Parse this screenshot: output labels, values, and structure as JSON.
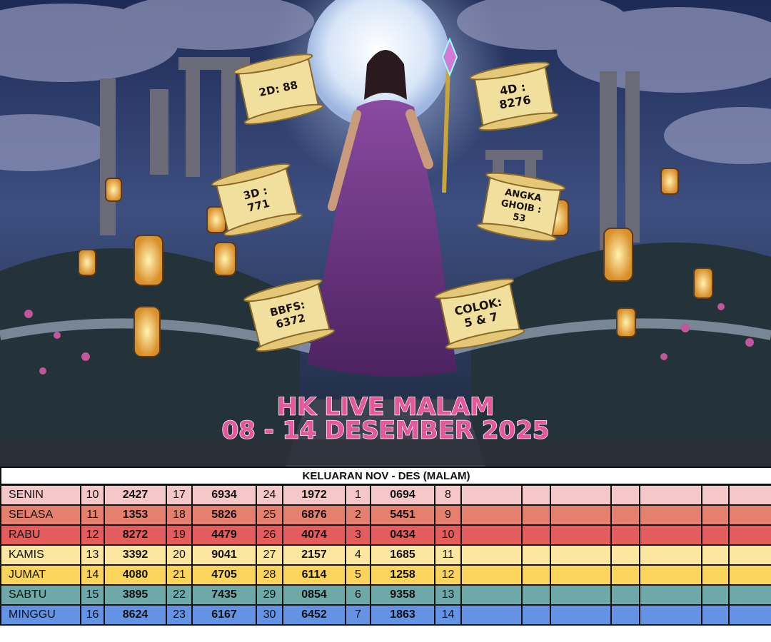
{
  "poster": {
    "scrolls": [
      {
        "lines": [
          "2D: 88"
        ]
      },
      {
        "lines": [
          "4D :",
          "8276"
        ]
      },
      {
        "lines": [
          "3D :",
          "771"
        ]
      },
      {
        "lines": [
          "ANGKA",
          "GHOIB :",
          "53"
        ]
      },
      {
        "lines": [
          "BBFS:",
          "6372"
        ]
      },
      {
        "lines": [
          "COLOK:",
          "5 & 7"
        ]
      }
    ],
    "title": "HK LIVE MALAM",
    "subtitle": "08 - 14 DESEMBER 2025"
  },
  "table": {
    "title": "KELUARAN NOV - DES (MALAM)",
    "rows": [
      [
        "SENIN",
        "10",
        "2427",
        "17",
        "6934",
        "24",
        "1972",
        "1",
        "0694",
        "8"
      ],
      [
        "SELASA",
        "11",
        "1353",
        "18",
        "5826",
        "25",
        "6876",
        "2",
        "5451",
        "9"
      ],
      [
        "RABU",
        "12",
        "8272",
        "19",
        "4479",
        "26",
        "4074",
        "3",
        "0434",
        "10"
      ],
      [
        "KAMIS",
        "13",
        "3392",
        "20",
        "9041",
        "27",
        "2157",
        "4",
        "1685",
        "11"
      ],
      [
        "JUMAT",
        "14",
        "4080",
        "21",
        "4705",
        "28",
        "6114",
        "5",
        "1258",
        "12"
      ],
      [
        "SABTU",
        "15",
        "3895",
        "22",
        "7435",
        "29",
        "0854",
        "6",
        "9358",
        "13"
      ],
      [
        "MINGGU",
        "16",
        "8624",
        "23",
        "6167",
        "30",
        "6452",
        "7",
        "1863",
        "14"
      ]
    ]
  }
}
